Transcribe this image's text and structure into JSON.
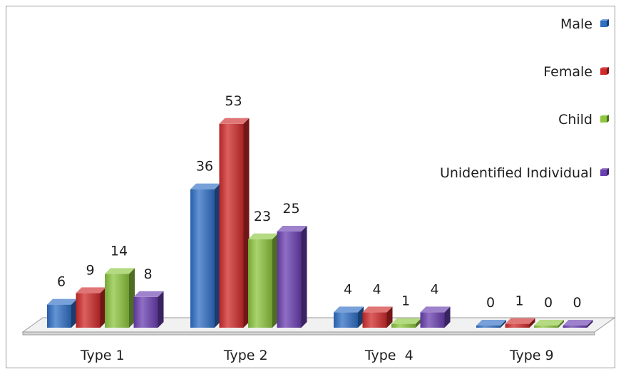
{
  "chart_data": {
    "type": "bar",
    "categories": [
      "Type 1",
      "Type 2",
      "Type  4",
      "Type 9"
    ],
    "series": [
      {
        "name": "Male",
        "values": [
          6,
          36,
          4,
          0
        ],
        "color": "#2f6fc6"
      },
      {
        "name": "Female",
        "values": [
          9,
          53,
          4,
          1
        ],
        "color": "#d02a2a"
      },
      {
        "name": "Child",
        "values": [
          14,
          23,
          1,
          0
        ],
        "color": "#8cc63f"
      },
      {
        "name": "Unidentified Individual",
        "values": [
          8,
          25,
          4,
          0
        ],
        "color": "#6a3fb0"
      }
    ],
    "ylim": [
      0,
      55
    ],
    "grid": false,
    "legend": "right",
    "style": "3d-bar"
  }
}
